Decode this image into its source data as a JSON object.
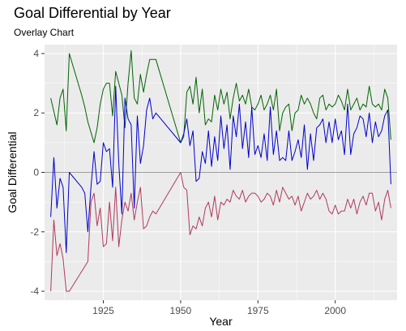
{
  "chart_data": {
    "type": "line",
    "title": "Goal Differential by Year",
    "subtitle": "Overlay Chart",
    "xlabel": "Year",
    "ylabel": "Goal Differential",
    "xlim": [
      1906,
      2020
    ],
    "ylim": [
      -4.3,
      4.3
    ],
    "x_ticks": [
      1925,
      1950,
      1975,
      2000
    ],
    "y_ticks": [
      -4,
      -2,
      0,
      2,
      4
    ],
    "grid": true,
    "background": "#ebebeb",
    "hline": 0,
    "series": [
      {
        "color": "#006400",
        "points": [
          [
            1908,
            2.5
          ],
          [
            1910,
            1.6
          ],
          [
            1911,
            2.5
          ],
          [
            1912,
            2.8
          ],
          [
            1913,
            1.4
          ],
          [
            1914,
            4.0
          ],
          [
            1918,
            2.6
          ],
          [
            1919,
            2.2
          ],
          [
            1920,
            1.7
          ],
          [
            1922,
            1.0
          ],
          [
            1923,
            1.5
          ],
          [
            1924,
            2.3
          ],
          [
            1925,
            2.8
          ],
          [
            1926,
            3.0
          ],
          [
            1927,
            3.0
          ],
          [
            1928,
            1.9
          ],
          [
            1929,
            3.4
          ],
          [
            1930,
            3.0
          ],
          [
            1931,
            2.6
          ],
          [
            1932,
            1.5
          ],
          [
            1933,
            3.0
          ],
          [
            1934,
            4.1
          ],
          [
            1935,
            2.5
          ],
          [
            1936,
            2.3
          ],
          [
            1937,
            3.3
          ],
          [
            1938,
            2.7
          ],
          [
            1939,
            3.3
          ],
          [
            1940,
            3.8
          ],
          [
            1941,
            3.8
          ],
          [
            1942,
            3.8
          ],
          [
            1950,
            1.0
          ],
          [
            1951,
            1.2
          ],
          [
            1952,
            2.7
          ],
          [
            1953,
            2.9
          ],
          [
            1954,
            2.3
          ],
          [
            1955,
            3.2
          ],
          [
            1956,
            2.0
          ],
          [
            1957,
            2.8
          ],
          [
            1958,
            1.6
          ],
          [
            1959,
            1.8
          ],
          [
            1960,
            1.7
          ],
          [
            1961,
            2.6
          ],
          [
            1962,
            2.1
          ],
          [
            1963,
            2.8
          ],
          [
            1964,
            2.3
          ],
          [
            1965,
            2.7
          ],
          [
            1966,
            1.8
          ],
          [
            1967,
            2.5
          ],
          [
            1968,
            3.0
          ],
          [
            1969,
            2.4
          ],
          [
            1970,
            2.6
          ],
          [
            1971,
            2.3
          ],
          [
            1972,
            2.8
          ],
          [
            1973,
            2.2
          ],
          [
            1974,
            2.1
          ],
          [
            1975,
            2.3
          ],
          [
            1976,
            2.6
          ],
          [
            1977,
            2.1
          ],
          [
            1978,
            2.3
          ],
          [
            1979,
            2.6
          ],
          [
            1980,
            2.1
          ],
          [
            1981,
            2.8
          ],
          [
            1982,
            1.4
          ],
          [
            1983,
            2.0
          ],
          [
            1984,
            2.2
          ],
          [
            1985,
            2.3
          ],
          [
            1986,
            1.4
          ],
          [
            1987,
            2.0
          ],
          [
            1988,
            2.1
          ],
          [
            1989,
            2.6
          ],
          [
            1990,
            2.3
          ],
          [
            1991,
            2.5
          ],
          [
            1992,
            2.3
          ],
          [
            1993,
            2.0
          ],
          [
            1994,
            1.8
          ],
          [
            1995,
            2.5
          ],
          [
            1996,
            2.6
          ],
          [
            1997,
            2.1
          ],
          [
            1998,
            2.3
          ],
          [
            1999,
            2.2
          ],
          [
            2000,
            2.3
          ],
          [
            2001,
            2.6
          ],
          [
            2002,
            2.4
          ],
          [
            2003,
            2.1
          ],
          [
            2004,
            2.8
          ],
          [
            2005,
            2.1
          ],
          [
            2006,
            2.3
          ],
          [
            2007,
            2.5
          ],
          [
            2008,
            2.1
          ],
          [
            2009,
            2.3
          ],
          [
            2010,
            2.2
          ],
          [
            2011,
            2.9
          ],
          [
            2012,
            2.3
          ],
          [
            2013,
            2.2
          ],
          [
            2014,
            2.3
          ],
          [
            2015,
            2.1
          ],
          [
            2016,
            2.8
          ],
          [
            2017,
            2.5
          ],
          [
            2018,
            1.1
          ]
        ]
      },
      {
        "color": "#0000cd",
        "points": [
          [
            1908,
            -1.5
          ],
          [
            1909,
            0.5
          ],
          [
            1910,
            -1.2
          ],
          [
            1911,
            -0.2
          ],
          [
            1912,
            -0.5
          ],
          [
            1913,
            -2.7
          ],
          [
            1914,
            0.0
          ],
          [
            1918,
            -0.5
          ],
          [
            1919,
            -0.7
          ],
          [
            1920,
            -2.0
          ],
          [
            1921,
            -0.5
          ],
          [
            1922,
            0.7
          ],
          [
            1923,
            -0.4
          ],
          [
            1924,
            -0.3
          ],
          [
            1925,
            1.0
          ],
          [
            1926,
            0.7
          ],
          [
            1927,
            0.8
          ],
          [
            1928,
            -0.5
          ],
          [
            1929,
            2.9
          ],
          [
            1930,
            0.3
          ],
          [
            1931,
            -1.4
          ],
          [
            1932,
            2.5
          ],
          [
            1933,
            1.8
          ],
          [
            1934,
            1.6
          ],
          [
            1935,
            -1.2
          ],
          [
            1936,
            1.9
          ],
          [
            1937,
            0.3
          ],
          [
            1938,
            0.9
          ],
          [
            1939,
            2.1
          ],
          [
            1940,
            2.5
          ],
          [
            1941,
            1.8
          ],
          [
            1942,
            2.0
          ],
          [
            1950,
            1.0
          ],
          [
            1951,
            1.3
          ],
          [
            1952,
            1.8
          ],
          [
            1953,
            0.9
          ],
          [
            1954,
            1.4
          ],
          [
            1955,
            -0.3
          ],
          [
            1956,
            -0.2
          ],
          [
            1957,
            0.7
          ],
          [
            1958,
            0.3
          ],
          [
            1959,
            1.4
          ],
          [
            1960,
            0.2
          ],
          [
            1961,
            1.2
          ],
          [
            1962,
            0.4
          ],
          [
            1963,
            1.9
          ],
          [
            1964,
            0.8
          ],
          [
            1965,
            1.6
          ],
          [
            1966,
            0.1
          ],
          [
            1967,
            1.9
          ],
          [
            1968,
            1.2
          ],
          [
            1969,
            2.3
          ],
          [
            1970,
            0.8
          ],
          [
            1971,
            1.7
          ],
          [
            1972,
            0.5
          ],
          [
            1973,
            2.2
          ],
          [
            1974,
            0.6
          ],
          [
            1975,
            0.9
          ],
          [
            1976,
            0.5
          ],
          [
            1977,
            1.3
          ],
          [
            1978,
            0.4
          ],
          [
            1979,
            2.2
          ],
          [
            1980,
            0.6
          ],
          [
            1981,
            1.4
          ],
          [
            1982,
            0.4
          ],
          [
            1983,
            0.5
          ],
          [
            1984,
            0.4
          ],
          [
            1985,
            1.4
          ],
          [
            1986,
            0.4
          ],
          [
            1987,
            0.7
          ],
          [
            1988,
            1.1
          ],
          [
            1989,
            0.5
          ],
          [
            1990,
            1.6
          ],
          [
            1991,
            0.1
          ],
          [
            1992,
            1.3
          ],
          [
            1993,
            0.4
          ],
          [
            1994,
            1.5
          ],
          [
            1995,
            1.6
          ],
          [
            1996,
            1.8
          ],
          [
            1997,
            1.0
          ],
          [
            1998,
            1.7
          ],
          [
            1999,
            1.0
          ],
          [
            2000,
            1.8
          ],
          [
            2001,
            1.1
          ],
          [
            2002,
            1.4
          ],
          [
            2003,
            0.6
          ],
          [
            2004,
            2.3
          ],
          [
            2005,
            0.6
          ],
          [
            2006,
            1.3
          ],
          [
            2007,
            1.5
          ],
          [
            2008,
            1.9
          ],
          [
            2009,
            1.8
          ],
          [
            2010,
            1.2
          ],
          [
            2011,
            2.0
          ],
          [
            2012,
            1.0
          ],
          [
            2013,
            1.7
          ],
          [
            2014,
            1.2
          ],
          [
            2015,
            1.4
          ],
          [
            2016,
            1.9
          ],
          [
            2017,
            2.1
          ],
          [
            2018,
            -0.4
          ]
        ]
      },
      {
        "color": "#b03a5b",
        "points": [
          [
            1908,
            -4.0
          ],
          [
            1909,
            -1.6
          ],
          [
            1910,
            -2.8
          ],
          [
            1911,
            -2.4
          ],
          [
            1912,
            -2.9
          ],
          [
            1913,
            -4.0
          ],
          [
            1914,
            -4.0
          ],
          [
            1920,
            -3.0
          ],
          [
            1921,
            -1.0
          ],
          [
            1922,
            -0.7
          ],
          [
            1923,
            -1.8
          ],
          [
            1924,
            -1.2
          ],
          [
            1925,
            -2.5
          ],
          [
            1926,
            -2.4
          ],
          [
            1927,
            -1.0
          ],
          [
            1928,
            -2.3
          ],
          [
            1929,
            -0.5
          ],
          [
            1930,
            -2.5
          ],
          [
            1931,
            -1.6
          ],
          [
            1932,
            -1.0
          ],
          [
            1933,
            -1.3
          ],
          [
            1934,
            -0.7
          ],
          [
            1935,
            -1.6
          ],
          [
            1936,
            -1.0
          ],
          [
            1937,
            -0.5
          ],
          [
            1938,
            -1.9
          ],
          [
            1939,
            -1.8
          ],
          [
            1940,
            -1.5
          ],
          [
            1941,
            -1.3
          ],
          [
            1942,
            -1.4
          ],
          [
            1950,
            0.0
          ],
          [
            1951,
            -0.5
          ],
          [
            1952,
            -0.6
          ],
          [
            1953,
            -2.1
          ],
          [
            1954,
            -1.8
          ],
          [
            1955,
            -1.9
          ],
          [
            1956,
            -1.5
          ],
          [
            1957,
            -1.8
          ],
          [
            1958,
            -1.2
          ],
          [
            1959,
            -1.0
          ],
          [
            1960,
            -1.5
          ],
          [
            1961,
            -0.8
          ],
          [
            1962,
            -1.6
          ],
          [
            1963,
            -1.0
          ],
          [
            1964,
            -1.1
          ],
          [
            1965,
            -0.9
          ],
          [
            1966,
            -1.0
          ],
          [
            1967,
            -0.6
          ],
          [
            1968,
            -0.8
          ],
          [
            1969,
            -0.9
          ],
          [
            1970,
            -0.6
          ],
          [
            1971,
            -1.0
          ],
          [
            1972,
            -0.8
          ],
          [
            1973,
            -0.7
          ],
          [
            1974,
            -0.7
          ],
          [
            1975,
            -0.8
          ],
          [
            1976,
            -1.0
          ],
          [
            1977,
            -0.9
          ],
          [
            1978,
            -0.7
          ],
          [
            1979,
            -0.8
          ],
          [
            1980,
            -1.1
          ],
          [
            1981,
            -0.6
          ],
          [
            1982,
            -1.0
          ],
          [
            1983,
            -0.5
          ],
          [
            1984,
            -0.7
          ],
          [
            1985,
            -0.9
          ],
          [
            1986,
            -0.8
          ],
          [
            1987,
            -1.1
          ],
          [
            1988,
            -0.8
          ],
          [
            1989,
            -1.3
          ],
          [
            1990,
            -1.0
          ],
          [
            1991,
            -0.7
          ],
          [
            1992,
            -0.9
          ],
          [
            1993,
            -0.8
          ],
          [
            1994,
            -0.6
          ],
          [
            1995,
            -0.9
          ],
          [
            1996,
            -0.7
          ],
          [
            1997,
            -0.9
          ],
          [
            1998,
            -1.3
          ],
          [
            1999,
            -1.4
          ],
          [
            2000,
            -1.1
          ],
          [
            2001,
            -1.4
          ],
          [
            2002,
            -1.3
          ],
          [
            2003,
            -1.3
          ],
          [
            2004,
            -0.9
          ],
          [
            2005,
            -1.2
          ],
          [
            2006,
            -0.9
          ],
          [
            2007,
            -1.4
          ],
          [
            2008,
            -1.0
          ],
          [
            2009,
            -0.8
          ],
          [
            2010,
            -1.1
          ],
          [
            2011,
            -0.7
          ],
          [
            2012,
            -0.7
          ],
          [
            2013,
            -1.3
          ],
          [
            2014,
            -1.0
          ],
          [
            2015,
            -1.6
          ],
          [
            2016,
            -0.9
          ],
          [
            2017,
            -0.6
          ],
          [
            2018,
            -1.2
          ]
        ]
      }
    ]
  }
}
